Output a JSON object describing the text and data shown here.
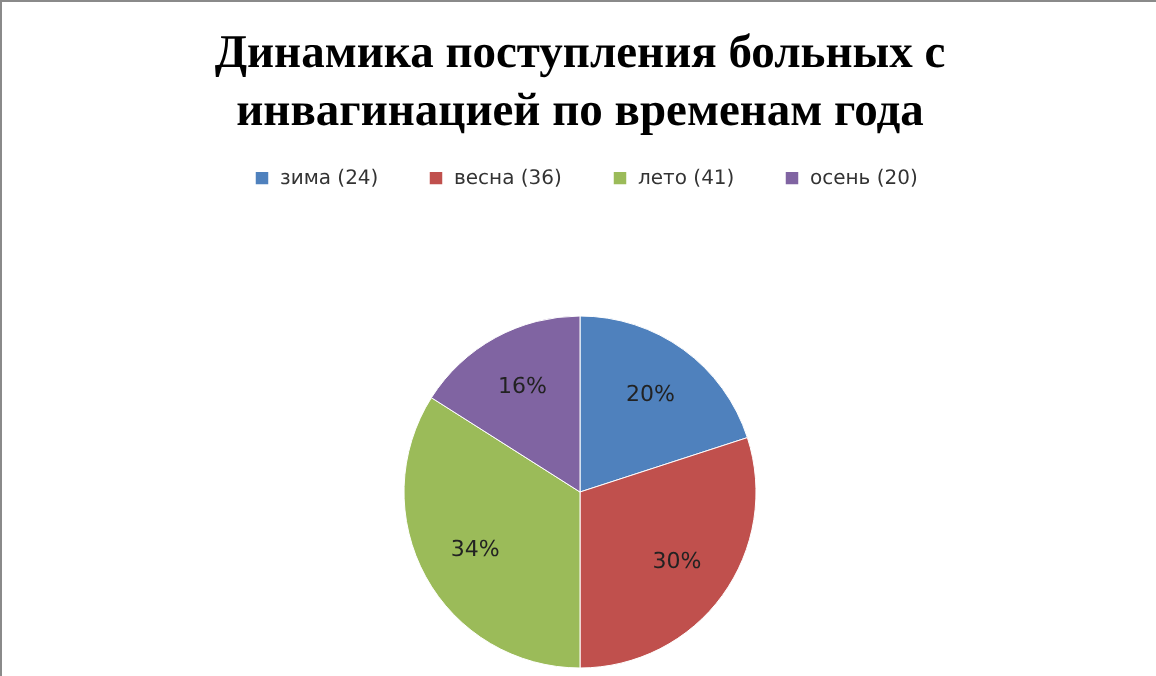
{
  "chart_data": {
    "type": "pie",
    "title": "Динамика поступления больных с инвагинацией по временам года",
    "categories": [
      "зима  (24)",
      "весна  (36)",
      "лето  (41)",
      "осень  (20)"
    ],
    "values": [
      20,
      30,
      34,
      16
    ],
    "colors": [
      "#4f81bd",
      "#c0504d",
      "#9bbb59",
      "#8064a2"
    ],
    "value_labels": [
      "20%",
      "30%",
      "34%",
      "16%"
    ],
    "legend": "top"
  }
}
